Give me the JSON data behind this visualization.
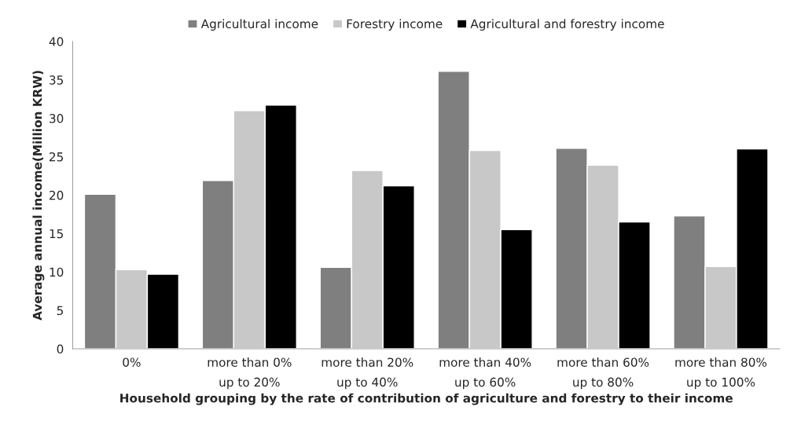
{
  "chart_data": {
    "type": "bar",
    "xlabel": "Household grouping by the rate of contribution of agriculture and forestry to their income",
    "ylabel": "Average annual income(Million KRW)",
    "categories": [
      "0%",
      "more than 0%\nup to 20%",
      "more than 20%\nup to 40%",
      "more than 40%\nup to 60%",
      "more than 60%\nup to 80%",
      "more than 80%\nup to 100%"
    ],
    "series": [
      {
        "name": "Agricultural income",
        "color": "#7f7f7f",
        "values": [
          20.1,
          21.9,
          10.6,
          36.1,
          26.1,
          17.3
        ]
      },
      {
        "name": "Forestry income",
        "color": "#c8c8c8",
        "values": [
          10.3,
          31.0,
          23.2,
          25.8,
          23.9,
          10.7
        ]
      },
      {
        "name": "Agricultural and forestry income",
        "color": "#000000",
        "values": [
          9.7,
          31.7,
          21.2,
          15.5,
          16.5,
          26.0
        ]
      }
    ],
    "ylim": [
      0,
      40
    ],
    "yticks": [
      0,
      5,
      10,
      15,
      20,
      25,
      30,
      35,
      40
    ],
    "grid": false,
    "legend": "top"
  }
}
